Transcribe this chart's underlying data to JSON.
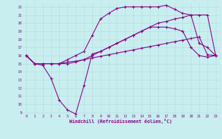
{
  "xlabel": "Windchill (Refroidissement éolien,°C)",
  "bg_color": "#c8eef0",
  "grid_color": "#b8dde0",
  "line_color": "#880088",
  "xlim": [
    -0.5,
    23.5
  ],
  "ylim": [
    8.8,
    22.5
  ],
  "yticks": [
    9,
    10,
    11,
    12,
    13,
    14,
    15,
    16,
    17,
    18,
    19,
    20,
    21,
    22
  ],
  "xticks": [
    0,
    1,
    2,
    3,
    4,
    5,
    6,
    7,
    8,
    9,
    10,
    11,
    12,
    13,
    14,
    15,
    16,
    17,
    18,
    19,
    20,
    21,
    22,
    23
  ],
  "curve1_x": [
    0,
    1,
    2,
    3,
    4,
    5,
    6,
    7,
    8,
    9,
    10,
    11,
    12,
    13,
    14,
    15,
    16,
    17,
    18,
    19,
    20,
    21,
    22,
    23
  ],
  "curve1_y": [
    16,
    15,
    14.8,
    13.2,
    10.5,
    9.3,
    8.8,
    12.3,
    16.2,
    16.5,
    17.0,
    17.5,
    18.0,
    18.5,
    19.0,
    19.5,
    19.5,
    19.5,
    19.3,
    19.0,
    17.0,
    16.0,
    15.8,
    16.0
  ],
  "curve2_x": [
    0,
    1,
    2,
    3,
    4,
    5,
    6,
    7,
    8,
    9,
    10,
    11,
    12,
    13,
    14,
    15,
    16,
    17,
    18,
    19,
    20,
    21,
    22,
    23
  ],
  "curve2_y": [
    16,
    15,
    15,
    15,
    15,
    15,
    15.2,
    15.5,
    16.0,
    16.5,
    17.0,
    17.5,
    18.0,
    18.5,
    19.0,
    19.5,
    20.0,
    20.2,
    20.5,
    20.7,
    21.0,
    21.0,
    21.0,
    16.0
  ],
  "curve3_x": [
    0,
    1,
    2,
    3,
    4,
    5,
    6,
    7,
    8,
    9,
    10,
    11,
    12,
    13,
    14,
    15,
    16,
    17,
    18,
    19,
    20,
    21,
    22,
    23
  ],
  "curve3_y": [
    16,
    15,
    15,
    15,
    15,
    15.5,
    16.0,
    16.5,
    18.5,
    20.5,
    21.2,
    21.8,
    22.0,
    22.0,
    22.0,
    22.0,
    22.0,
    22.2,
    21.7,
    21.2,
    21.0,
    17.5,
    17.0,
    16.0
  ],
  "curve4_x": [
    0,
    1,
    2,
    3,
    4,
    5,
    6,
    7,
    8,
    9,
    10,
    11,
    12,
    13,
    14,
    15,
    16,
    17,
    18,
    19,
    20,
    21,
    22,
    23
  ],
  "curve4_y": [
    16,
    15,
    15,
    15,
    15,
    15.2,
    15.3,
    15.5,
    15.7,
    15.9,
    16.1,
    16.3,
    16.5,
    16.7,
    16.9,
    17.1,
    17.3,
    17.5,
    17.7,
    17.9,
    18.1,
    18.3,
    16.1,
    16.0
  ]
}
